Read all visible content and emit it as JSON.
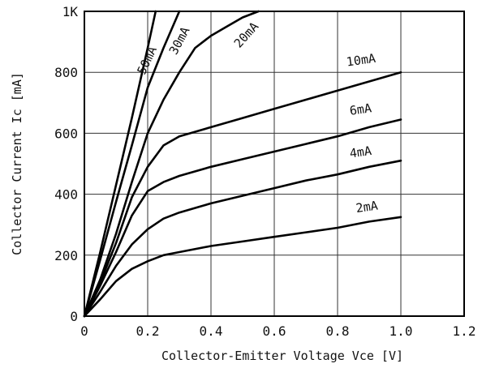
{
  "chart_data": {
    "type": "line",
    "title": "",
    "xlabel": "Collector-Emitter Voltage Vce [V]",
    "ylabel": "Collector Current Ic [mA]",
    "xlim": [
      0,
      1.2
    ],
    "ylim": [
      0,
      1000
    ],
    "x_ticks": [
      "0",
      "0.2",
      "0.4",
      "0.6",
      "0.8",
      "1.0",
      "1.2"
    ],
    "y_ticks": [
      "0",
      "200",
      "400",
      "600",
      "800",
      "1K"
    ],
    "grid": true,
    "series": [
      {
        "name": "50mA",
        "x": [
          0,
          0.05,
          0.1,
          0.15,
          0.2,
          0.225
        ],
        "y": [
          0,
          210,
          430,
          650,
          880,
          1000
        ]
      },
      {
        "name": "30mA",
        "x": [
          0,
          0.05,
          0.1,
          0.15,
          0.2,
          0.25,
          0.3
        ],
        "y": [
          0,
          185,
          375,
          560,
          750,
          880,
          1000
        ]
      },
      {
        "name": "20mA",
        "x": [
          0,
          0.05,
          0.1,
          0.15,
          0.2,
          0.25,
          0.3,
          0.35,
          0.4,
          0.45,
          0.5,
          0.55
        ],
        "y": [
          0,
          120,
          270,
          440,
          600,
          710,
          800,
          880,
          920,
          950,
          980,
          1000
        ]
      },
      {
        "name": "10mA",
        "x": [
          0,
          0.05,
          0.1,
          0.15,
          0.2,
          0.25,
          0.3,
          0.4,
          0.5,
          0.6,
          0.7,
          0.8,
          0.9,
          1.0
        ],
        "y": [
          0,
          110,
          240,
          390,
          490,
          560,
          590,
          620,
          650,
          680,
          710,
          740,
          770,
          800
        ]
      },
      {
        "name": "6mA",
        "x": [
          0,
          0.05,
          0.1,
          0.15,
          0.2,
          0.25,
          0.3,
          0.4,
          0.5,
          0.6,
          0.7,
          0.8,
          0.9,
          1.0
        ],
        "y": [
          0,
          100,
          210,
          330,
          410,
          440,
          460,
          490,
          515,
          540,
          565,
          590,
          620,
          645
        ]
      },
      {
        "name": "4mA",
        "x": [
          0,
          0.05,
          0.1,
          0.15,
          0.2,
          0.25,
          0.3,
          0.4,
          0.5,
          0.6,
          0.7,
          0.8,
          0.9,
          1.0
        ],
        "y": [
          0,
          80,
          165,
          235,
          285,
          320,
          340,
          370,
          395,
          420,
          445,
          465,
          490,
          510
        ]
      },
      {
        "name": "2mA",
        "x": [
          0,
          0.05,
          0.1,
          0.15,
          0.2,
          0.25,
          0.3,
          0.4,
          0.5,
          0.6,
          0.7,
          0.8,
          0.9,
          1.0
        ],
        "y": [
          0,
          55,
          115,
          155,
          180,
          200,
          210,
          230,
          245,
          260,
          275,
          290,
          310,
          325
        ]
      }
    ]
  }
}
